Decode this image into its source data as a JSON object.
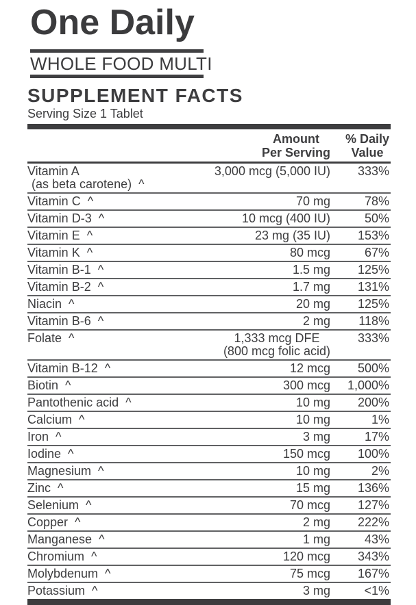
{
  "label": {
    "title": "One Daily",
    "subtitle": "WHOLE FOOD MULTI",
    "facts_title": "SUPPLEMENT FACTS",
    "serving_size": "Serving Size 1 Tablet"
  },
  "table": {
    "header": {
      "amount_line1": "Amount",
      "amount_line2": "Per Serving",
      "dv_line1": "% Daily",
      "dv_line2": "Value"
    },
    "rows": [
      {
        "name": "Vitamin A",
        "name2": "(as beta carotene)  ^",
        "amount": "3,000 mcg (5,000 IU)",
        "dv": "333%"
      },
      {
        "name": "Vitamin C  ^",
        "amount": "70 mg",
        "dv": "78%"
      },
      {
        "name": "Vitamin D-3  ^",
        "amount": "10 mcg (400 IU)",
        "dv": "50%"
      },
      {
        "name": "Vitamin E  ^",
        "amount": "23 mg (35 IU)",
        "dv": "153%"
      },
      {
        "name": "Vitamin K  ^",
        "amount": "80 mcg",
        "dv": "67%"
      },
      {
        "name": "Vitamin B-1  ^",
        "amount": "1.5 mg",
        "dv": "125%"
      },
      {
        "name": "Vitamin B-2  ^",
        "amount": "1.7 mg",
        "dv": "131%"
      },
      {
        "name": "Niacin  ^",
        "amount": "20 mg",
        "dv": "125%"
      },
      {
        "name": "Vitamin B-6  ^",
        "amount": "2 mg",
        "dv": "118%"
      },
      {
        "name": "Folate  ^",
        "amount": "1,333 mcg DFE",
        "amount2": "(800 mcg folic acid)",
        "dv": "333%"
      },
      {
        "name": "Vitamin B-12  ^",
        "amount": "12 mcg",
        "dv": "500%"
      },
      {
        "name": "Biotin  ^",
        "amount": "300 mcg",
        "dv": "1,000%"
      },
      {
        "name": "Pantothenic acid  ^",
        "amount": "10 mg",
        "dv": "200%"
      },
      {
        "name": "Calcium  ^",
        "amount": "10 mg",
        "dv": "1%"
      },
      {
        "name": "Iron  ^",
        "amount": "3 mg",
        "dv": "17%"
      },
      {
        "name": "Iodine  ^",
        "amount": "150 mcg",
        "dv": "100%"
      },
      {
        "name": "Magnesium  ^",
        "amount": "10 mg",
        "dv": "2%"
      },
      {
        "name": "Zinc  ^",
        "amount": "15 mg",
        "dv": "136%"
      },
      {
        "name": "Selenium  ^",
        "amount": "70 mcg",
        "dv": "127%"
      },
      {
        "name": "Copper  ^",
        "amount": "2 mg",
        "dv": "222%"
      },
      {
        "name": "Manganese  ^",
        "amount": "1 mg",
        "dv": "43%"
      },
      {
        "name": "Chromium  ^",
        "amount": "120 mcg",
        "dv": "343%"
      },
      {
        "name": "Molybdenum  ^",
        "amount": "75 mcg",
        "dv": "167%"
      },
      {
        "name": "Potassium  ^",
        "amount": "3 mg",
        "dv": "<1%"
      }
    ]
  },
  "colors": {
    "ink": "#3d3d3f",
    "separator": "#606163",
    "background": "#ffffff"
  }
}
